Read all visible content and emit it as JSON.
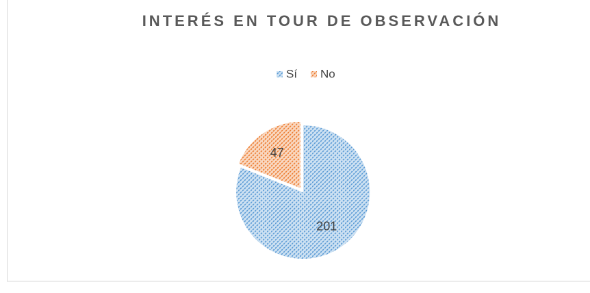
{
  "chart_data": {
    "type": "pie",
    "title": "INTERÉS EN TOUR DE OBSERVACIÓN",
    "categories": [
      "Sí",
      "No"
    ],
    "values": [
      201,
      47
    ],
    "colors": [
      "#5b9bd5",
      "#ed7d31"
    ],
    "legend": "top"
  }
}
